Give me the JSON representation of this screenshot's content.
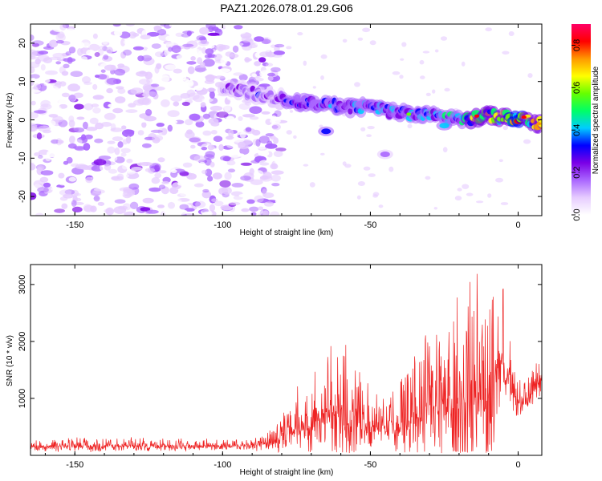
{
  "title": "PAZ1.2026.078.01.29.G06",
  "chart_data": [
    {
      "type": "heatmap",
      "xlabel": "Height of straight line (km)",
      "ylabel": "Frequency (Hz)",
      "xlim": [
        -165,
        8
      ],
      "ylim": [
        -25,
        25
      ],
      "xticks": [
        -150,
        -100,
        -50,
        0
      ],
      "xtick_labels": [
        "-150",
        "-100",
        "-50",
        "0"
      ],
      "yticks": [
        -20,
        -10,
        0,
        10,
        20
      ],
      "ytick_labels": [
        "-20",
        "-10",
        "0",
        "10",
        "20"
      ],
      "colorbar": {
        "label": "Normalized spectral amplitude",
        "range": [
          0,
          0.9
        ],
        "ticks": [
          0.0,
          0.2,
          0.4,
          0.6,
          0.8
        ],
        "tick_labels": [
          "0.0",
          "0.2",
          "0.4",
          "0.6",
          "0.8"
        ],
        "colormap": [
          "#ffffff",
          "#e6ccff",
          "#aa66ff",
          "#7a00e6",
          "#0000ff",
          "#00ccff",
          "#00ff66",
          "#66ff00",
          "#ffff00",
          "#ff9900",
          "#ff0000",
          "#ff0066"
        ]
      },
      "noise_region": {
        "x_from": -165,
        "x_to": -80,
        "freq_from": -25,
        "freq_to": 25,
        "amplitude_max": 0.25
      },
      "signal_ridge": {
        "x": [
          -100,
          -90,
          -80,
          -70,
          -60,
          -50,
          -40,
          -30,
          -20,
          -10,
          0,
          8
        ],
        "frequency": [
          8.5,
          7,
          5.5,
          4.5,
          3.5,
          3,
          2,
          1,
          0,
          1,
          0.5,
          -1
        ],
        "amplitude": [
          0.25,
          0.3,
          0.35,
          0.38,
          0.4,
          0.42,
          0.45,
          0.5,
          0.55,
          0.75,
          0.85,
          0.7
        ]
      },
      "side_blobs": [
        {
          "x": -65,
          "frequency": -3,
          "amplitude": 0.35
        },
        {
          "x": -45,
          "frequency": -9,
          "amplitude": 0.2
        },
        {
          "x": -25,
          "frequency": -1.5,
          "amplitude": 0.4
        }
      ]
    },
    {
      "type": "line",
      "xlabel": "Height of straight line (km)",
      "ylabel": "SNR (10 * v/v)",
      "xlim": [
        -165,
        8
      ],
      "ylim": [
        0,
        3350
      ],
      "xticks": [
        -150,
        -100,
        -50,
        0
      ],
      "xtick_labels": [
        "-150",
        "-100",
        "-50",
        "0"
      ],
      "yticks": [
        1000,
        2000,
        3000
      ],
      "ytick_labels": [
        "1000",
        "2000",
        "3000"
      ],
      "series": [
        {
          "name": "SNR",
          "color": "#ee2222",
          "envelope": {
            "x": [
              -165,
              -150,
              -120,
              -90,
              -81,
              -75,
              -70,
              -65,
              -60,
              -55,
              -50,
              -45,
              -40,
              -35,
              -30,
              -25,
              -20,
              -15,
              -10,
              -5,
              -3,
              -1,
              2,
              5,
              8
            ],
            "base": [
              150,
              160,
              160,
              170,
              250,
              450,
              550,
              700,
              700,
              600,
              500,
              450,
              500,
              600,
              800,
              900,
              700,
              1000,
              1000,
              1700,
              1300,
              1000,
              900,
              1100,
              1400
            ],
            "amp": [
              110,
              150,
              140,
              120,
              350,
              700,
              1000,
              1300,
              1400,
              1100,
              700,
              500,
              800,
              1100,
              1500,
              2000,
              2500,
              2300,
              2200,
              1500,
              700,
              500,
              400,
              500,
              450
            ]
          }
        }
      ]
    }
  ]
}
